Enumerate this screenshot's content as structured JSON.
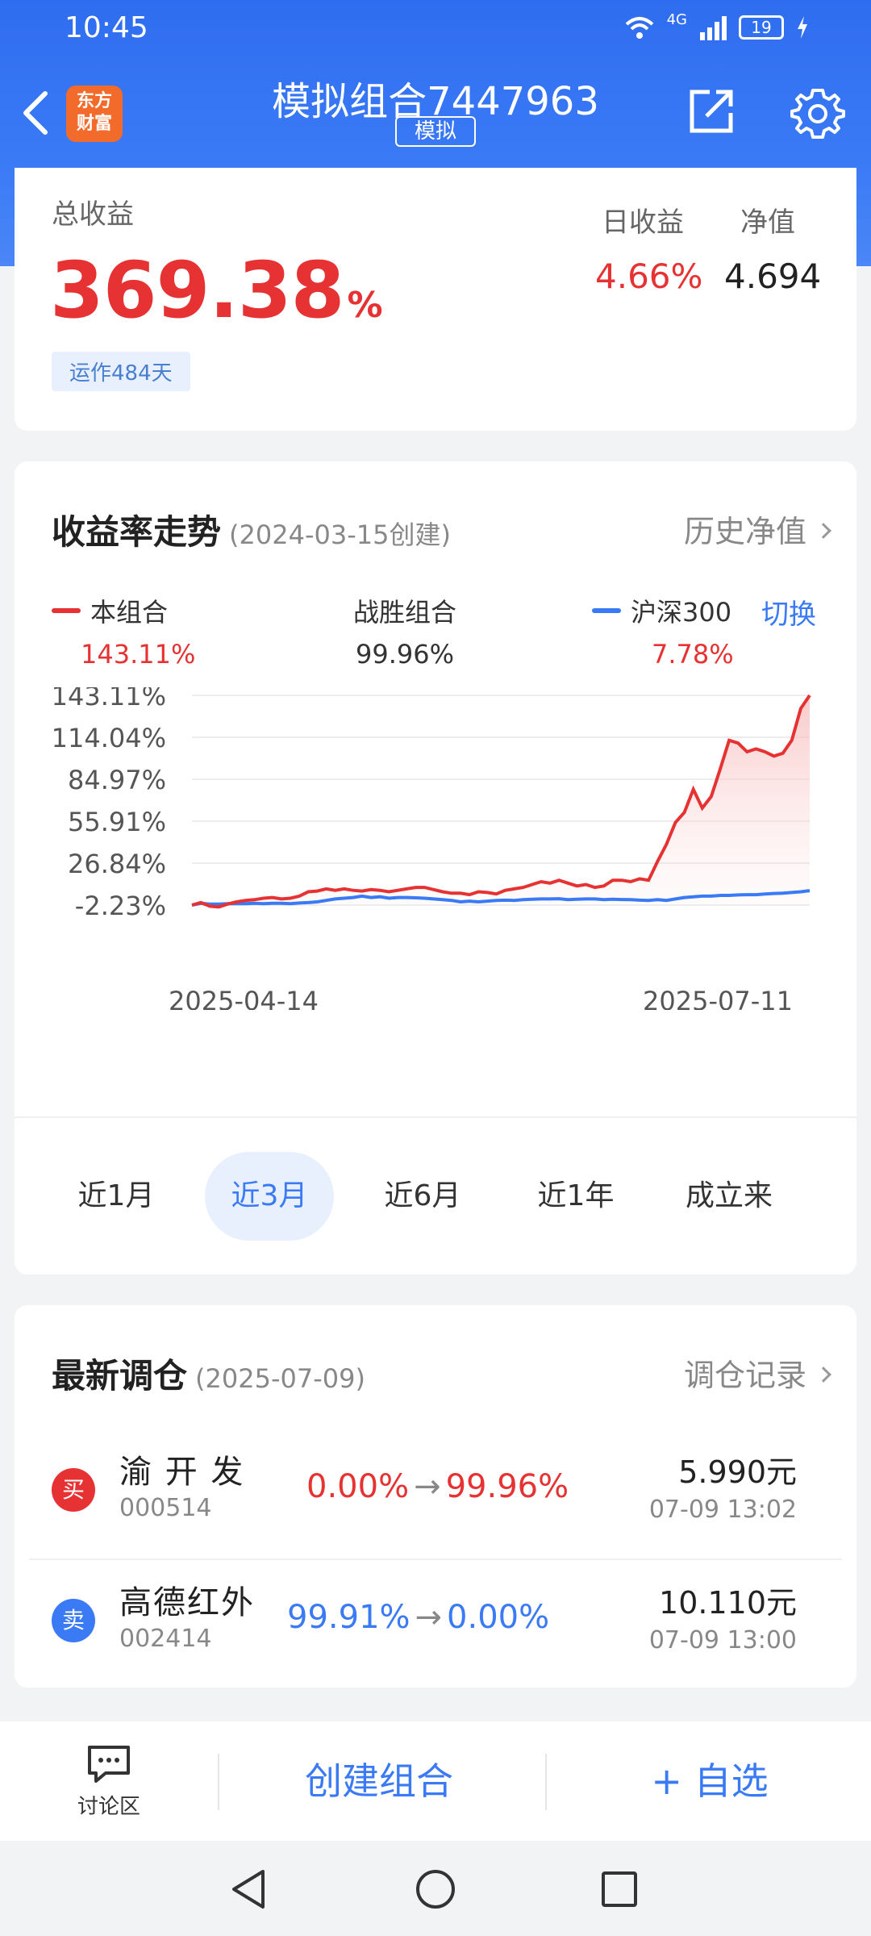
{
  "status_bar": {
    "time": "10:45",
    "network": "4G",
    "battery": "19"
  },
  "header": {
    "title": "模拟组合7447963",
    "tag": "模拟",
    "logo_line1": "东方",
    "logo_line2": "财富"
  },
  "summary": {
    "total_label": "总收益",
    "total_value": "369.38",
    "total_unit": "%",
    "run_days": "运作484天",
    "daily_label": "日收益",
    "daily_value": "4.66%",
    "nav_label": "净值",
    "nav_value": "4.694"
  },
  "trend": {
    "title": "收益率走势",
    "created": "(2024-03-15创建)",
    "history_link": "历史净值",
    "legend": [
      {
        "name": "本组合",
        "value": "143.11%",
        "color": "#e63232"
      },
      {
        "name": "战胜组合",
        "value": "99.96%"
      },
      {
        "name": "沪深300",
        "value": "7.78%",
        "color": "#3a7af5"
      }
    ],
    "switch_label": "切换",
    "ranges": [
      "近1月",
      "近3月",
      "近6月",
      "近1年",
      "成立来"
    ],
    "active_range": "近3月"
  },
  "chart_data": {
    "type": "line",
    "x_start": "2025-04-14",
    "x_end": "2025-07-11",
    "y_ticks": [
      "143.11%",
      "114.04%",
      "84.97%",
      "55.91%",
      "26.84%",
      "-2.23%"
    ],
    "ylim": [
      -2.23,
      143.11
    ],
    "series": [
      {
        "name": "本组合",
        "color": "#e63232",
        "values": [
          -2.23,
          -0.5,
          -3.0,
          -3.5,
          -1.5,
          0.0,
          1.0,
          1.5,
          2.5,
          3.0,
          2.0,
          2.5,
          4.0,
          7.0,
          7.5,
          9.0,
          8.0,
          9.0,
          8.0,
          7.5,
          8.5,
          8.0,
          7.0,
          8.0,
          9.0,
          10.0,
          10.0,
          8.5,
          7.0,
          6.0,
          6.0,
          5.0,
          7.0,
          6.5,
          5.5,
          8.0,
          9.0,
          10.0,
          12.0,
          14.0,
          13.0,
          15.0,
          13.0,
          11.0,
          12.0,
          10.0,
          11.0,
          15.0,
          15.0,
          14.0,
          16.0,
          15.0,
          28.0,
          40.0,
          55.0,
          62.0,
          78.0,
          65.0,
          73.0,
          92.0,
          112.0,
          110.0,
          104.0,
          106.0,
          104.0,
          101.0,
          103.0,
          112.0,
          134.0,
          143.11
        ]
      },
      {
        "name": "沪深300",
        "color": "#3a7af5",
        "values": [
          -2.23,
          -1.0,
          -1.5,
          -1.5,
          -1.2,
          -1.2,
          -1.3,
          -1.0,
          -1.2,
          -1.0,
          -1.0,
          -1.2,
          -0.8,
          -0.5,
          0.0,
          1.0,
          2.0,
          2.5,
          3.0,
          4.0,
          3.0,
          3.5,
          2.5,
          3.0,
          3.0,
          2.8,
          2.5,
          2.0,
          1.5,
          1.0,
          0.0,
          0.5,
          0.0,
          0.5,
          1.0,
          1.2,
          1.0,
          1.5,
          1.8,
          2.0,
          2.0,
          2.2,
          1.5,
          1.8,
          2.0,
          2.0,
          1.5,
          1.8,
          1.6,
          1.5,
          1.2,
          1.0,
          1.5,
          1.0,
          2.0,
          3.0,
          3.5,
          4.0,
          4.0,
          4.5,
          4.5,
          4.8,
          5.0,
          5.0,
          5.5,
          5.8,
          6.0,
          6.5,
          7.0,
          7.78
        ]
      }
    ]
  },
  "rebalance": {
    "title": "最新调仓",
    "date": "(2025-07-09)",
    "record_link": "调仓记录",
    "trades": [
      {
        "type": "买",
        "name": "渝 开 发",
        "code": "000514",
        "from": "0.00%",
        "to": "99.96%",
        "price": "5.990元",
        "time": "07-09  13:02",
        "color": "#e63232"
      },
      {
        "type": "卖",
        "name": "高德红外",
        "code": "002414",
        "from": "99.91%",
        "to": "0.00%",
        "price": "10.110元",
        "time": "07-09  13:00",
        "color": "#3a7af5"
      }
    ]
  },
  "bottom": {
    "discuss": "讨论区",
    "create": "创建组合",
    "watch": "+ 自选"
  }
}
